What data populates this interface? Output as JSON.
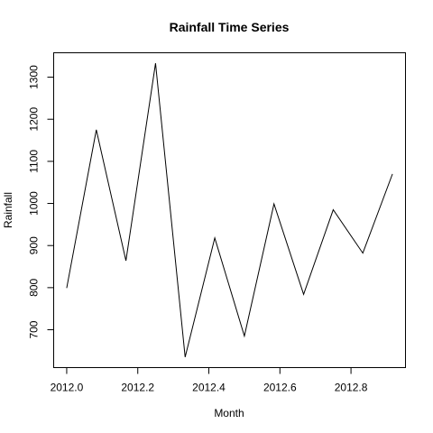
{
  "chart_data": {
    "type": "line",
    "title": "Rainfall Time Series",
    "xlabel": "Month",
    "ylabel": "Rainfall",
    "x": [
      2012.0,
      2012.0833,
      2012.1667,
      2012.25,
      2012.3333,
      2012.4167,
      2012.5,
      2012.5833,
      2012.6667,
      2012.75,
      2012.8333,
      2012.9167
    ],
    "series": [
      {
        "values": [
          799,
          1175,
          864,
          1333,
          635,
          918,
          685,
          999,
          784,
          985,
          882,
          1070
        ]
      }
    ],
    "xlim": [
      1991.96,
      2012.9533
    ],
    "ylim": [
      610.08,
      1357.92
    ],
    "xticks": [
      "2012.0",
      "2012.2",
      "2012.4",
      "2012.6",
      "2012.8"
    ],
    "yticks": [
      "700",
      "800",
      "900",
      "1000",
      "1100",
      "1200",
      "1300"
    ],
    "line_color": "#000000",
    "grid": false
  }
}
